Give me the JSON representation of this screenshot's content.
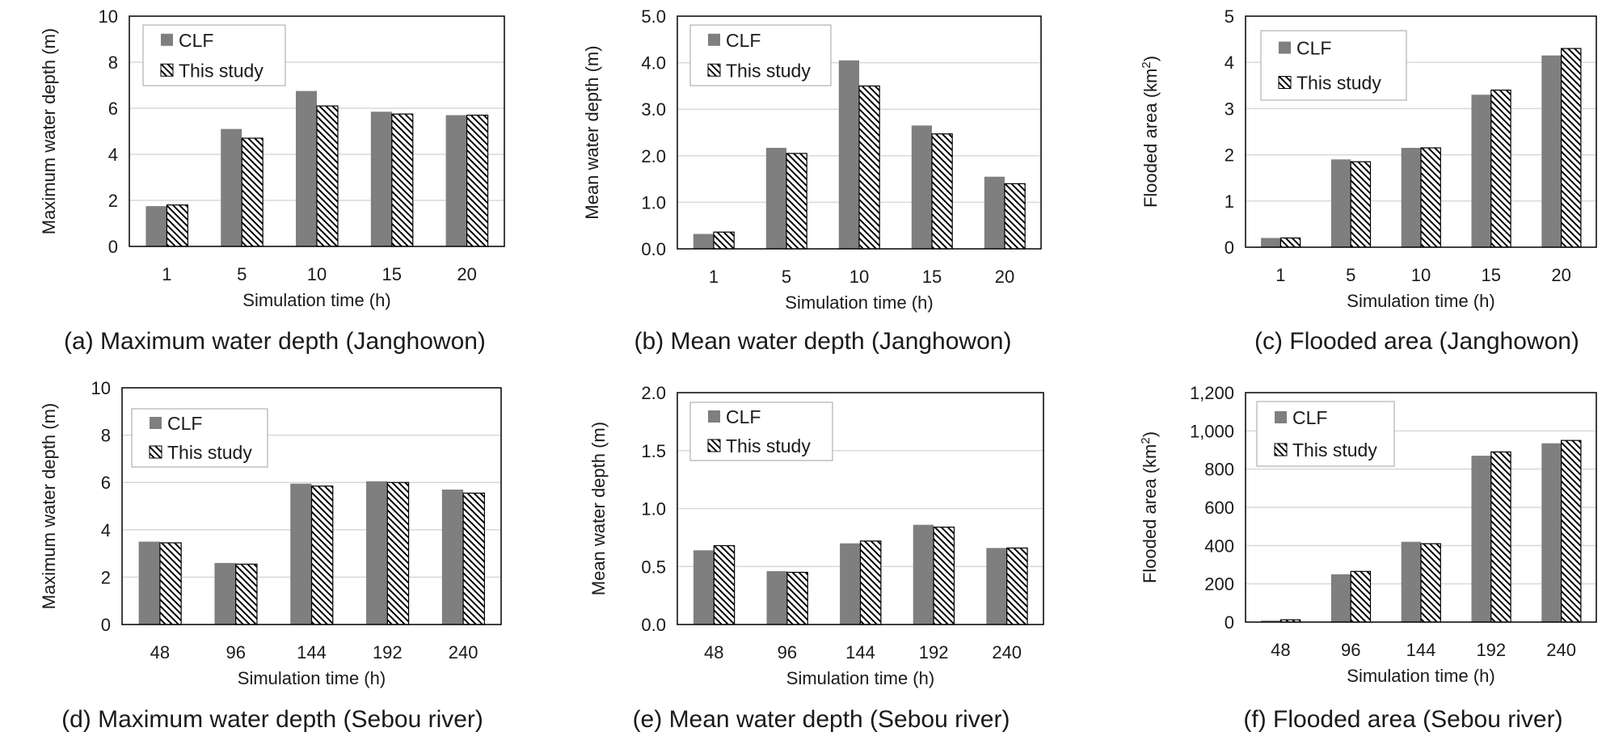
{
  "chart_data": [
    {
      "id": "a",
      "type": "bar",
      "caption": "(a) Maximum water depth (Janghowon)",
      "xlabel": "Simulation time (h)",
      "ylabel": "Maximum water depth (m)",
      "ylabel_sup": "",
      "ylabel_after": "",
      "ylim": [
        0,
        10
      ],
      "ystep": 2,
      "yticks": [
        "0",
        "2",
        "4",
        "6",
        "8",
        "10"
      ],
      "categories": [
        "1",
        "5",
        "10",
        "15",
        "20"
      ],
      "series": [
        {
          "name": "CLF",
          "values": [
            1.75,
            5.1,
            6.75,
            5.85,
            5.7
          ]
        },
        {
          "name": "This study",
          "values": [
            1.8,
            4.7,
            6.1,
            5.75,
            5.7
          ]
        }
      ]
    },
    {
      "id": "b",
      "type": "bar",
      "caption": "(b) Mean water depth (Janghowon)",
      "xlabel": "Simulation time (h)",
      "ylabel": "Mean water depth (m)",
      "ylabel_sup": "",
      "ylabel_after": "",
      "ylim": [
        0,
        5
      ],
      "ystep": 1,
      "yticks": [
        "0.0",
        "1.0",
        "2.0",
        "3.0",
        "4.0",
        "5.0"
      ],
      "categories": [
        "1",
        "5",
        "10",
        "15",
        "20"
      ],
      "series": [
        {
          "name": "CLF",
          "values": [
            0.32,
            2.17,
            4.05,
            2.65,
            1.55
          ]
        },
        {
          "name": "This study",
          "values": [
            0.36,
            2.05,
            3.5,
            2.47,
            1.4
          ]
        }
      ]
    },
    {
      "id": "c",
      "type": "bar",
      "caption": "(c) Flooded area (Janghowon)",
      "xlabel": "Simulation time (h)",
      "ylabel": "Flooded area (km",
      "ylabel_sup": "2",
      "ylabel_after": ")",
      "ylim": [
        0,
        5
      ],
      "ystep": 1,
      "yticks": [
        "0",
        "1",
        "2",
        "3",
        "4",
        "5"
      ],
      "categories": [
        "1",
        "5",
        "10",
        "15",
        "20"
      ],
      "series": [
        {
          "name": "CLF",
          "values": [
            0.2,
            1.9,
            2.15,
            3.3,
            4.15
          ]
        },
        {
          "name": "This study",
          "values": [
            0.2,
            1.85,
            2.15,
            3.4,
            4.3
          ]
        }
      ]
    },
    {
      "id": "d",
      "type": "bar",
      "caption": "(d) Maximum water depth (Sebou river)",
      "xlabel": "Simulation time (h)",
      "ylabel": "Maximum water depth (m)",
      "ylabel_sup": "",
      "ylabel_after": "",
      "ylim": [
        0,
        10
      ],
      "ystep": 2,
      "yticks": [
        "0",
        "2",
        "4",
        "6",
        "8",
        "10"
      ],
      "categories": [
        "48",
        "96",
        "144",
        "192",
        "240"
      ],
      "series": [
        {
          "name": "CLF",
          "values": [
            3.5,
            2.6,
            5.95,
            6.05,
            5.7
          ]
        },
        {
          "name": "This study",
          "values": [
            3.45,
            2.55,
            5.85,
            6.0,
            5.55
          ]
        }
      ]
    },
    {
      "id": "e",
      "type": "bar",
      "caption": "(e) Mean water depth (Sebou river)",
      "xlabel": "Simulation time (h)",
      "ylabel": "Mean water depth  (m)",
      "ylabel_sup": "",
      "ylabel_after": "",
      "ylim": [
        0,
        2
      ],
      "ystep": 0.5,
      "yticks": [
        "0.0",
        "0.5",
        "1.0",
        "1.5",
        "2.0"
      ],
      "categories": [
        "48",
        "96",
        "144",
        "192",
        "240"
      ],
      "series": [
        {
          "name": "CLF",
          "values": [
            0.64,
            0.46,
            0.7,
            0.86,
            0.66
          ]
        },
        {
          "name": "This study",
          "values": [
            0.68,
            0.45,
            0.72,
            0.84,
            0.66
          ]
        }
      ]
    },
    {
      "id": "f",
      "type": "bar",
      "caption": "(f) Flooded area (Sebou river)",
      "xlabel": "Simulation time (h)",
      "ylabel": "Flooded area (km",
      "ylabel_sup": "2",
      "ylabel_after": ")",
      "ylim": [
        0,
        1200
      ],
      "ystep": 200,
      "yticks": [
        "0",
        "200",
        "400",
        "600",
        "800",
        "1,000",
        "1,200"
      ],
      "categories": [
        "48",
        "96",
        "144",
        "192",
        "240"
      ],
      "series": [
        {
          "name": "CLF",
          "values": [
            8,
            250,
            420,
            870,
            935
          ]
        },
        {
          "name": "This study",
          "values": [
            12,
            265,
            410,
            890,
            950
          ]
        }
      ]
    }
  ],
  "style": {
    "clf_color": "#7f7f7f",
    "hatch_color": "#000000",
    "grid_color": "#d9d9d9",
    "border_color": "#000000"
  }
}
